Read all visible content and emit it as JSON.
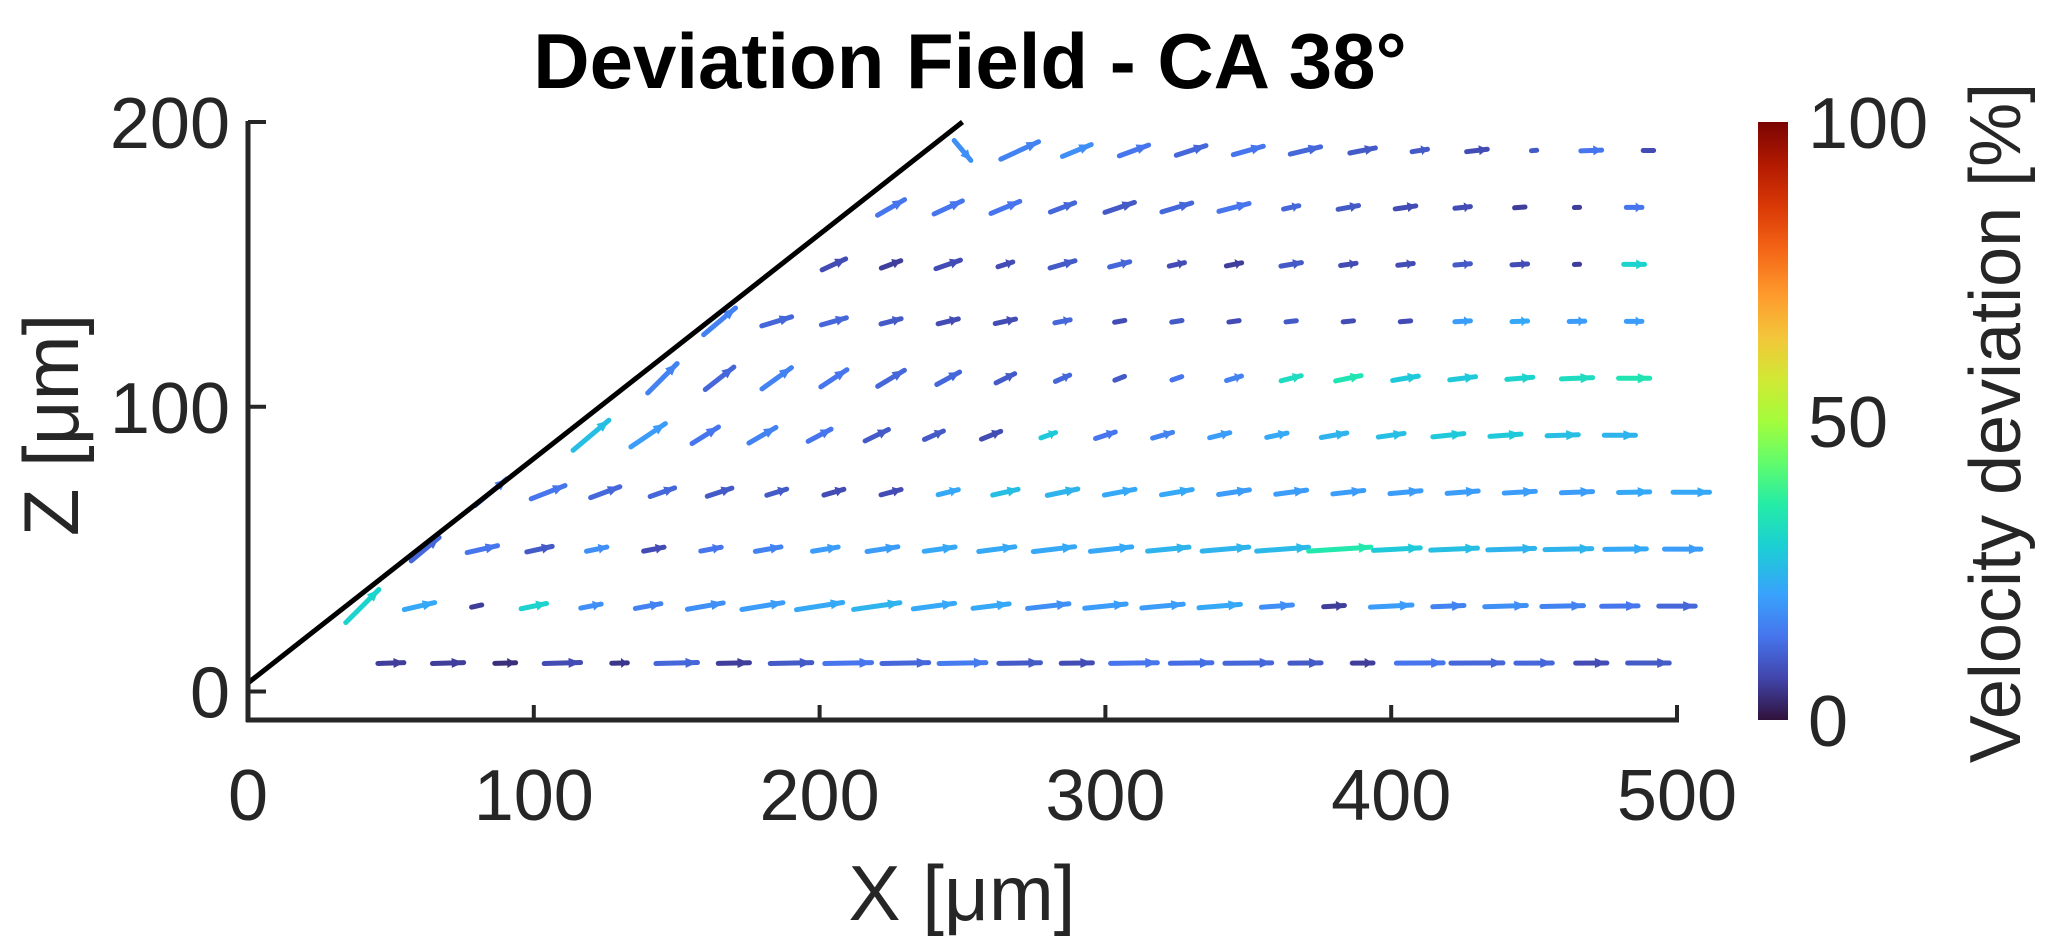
{
  "chart_data": {
    "type": "quiver",
    "title": "Deviation Field - CA 38°",
    "xlabel": "X [μm]",
    "ylabel": "Z [μm]",
    "xlim": [
      0,
      500
    ],
    "ylim": [
      -10,
      200
    ],
    "xticks": [
      "0",
      "100",
      "200",
      "300",
      "400",
      "500"
    ],
    "yticks": [
      "0",
      "100",
      "200"
    ],
    "boundary_line": {
      "x": [
        0,
        250
      ],
      "y": [
        3,
        200
      ]
    },
    "colorbar": {
      "label": "Velocity deviation [%]",
      "range": [
        0,
        100
      ],
      "ticks": [
        "0",
        "50",
        "100"
      ],
      "colormap": "turbo"
    },
    "rows": [
      {
        "z": 10,
        "x_start": 50,
        "count": 23,
        "deviations": [
          6,
          6,
          4,
          8,
          5,
          12,
          6,
          10,
          14,
          12,
          15,
          10,
          8,
          14,
          13,
          12,
          10,
          6,
          14,
          12,
          12,
          8,
          10
        ],
        "angle_deg": 2,
        "magnitudes": [
          5,
          6,
          4,
          7,
          3,
          8,
          6,
          8,
          9,
          9,
          9,
          8,
          6,
          9,
          8,
          9,
          6,
          4,
          9,
          10,
          7,
          6,
          8
        ]
      },
      {
        "z": 30,
        "x_start": 40,
        "count": 24,
        "deviations": [
          30,
          22,
          6,
          30,
          18,
          16,
          18,
          20,
          22,
          24,
          22,
          22,
          18,
          20,
          20,
          22,
          18,
          6,
          20,
          16,
          18,
          16,
          14,
          12
        ],
        "angle_deg": 15,
        "magnitudes": [
          9,
          6,
          2,
          5,
          4,
          5,
          7,
          8,
          9,
          9,
          8,
          7,
          8,
          8,
          8,
          8,
          6,
          4,
          8,
          6,
          8,
          8,
          7,
          7
        ],
        "first_angle_deg": 45
      },
      {
        "z": 50,
        "x_start": 62,
        "count": 23,
        "deviations": [
          12,
          14,
          10,
          18,
          8,
          14,
          16,
          20,
          20,
          22,
          22,
          22,
          22,
          24,
          24,
          25,
          35,
          28,
          26,
          24,
          24,
          22,
          20
        ],
        "angle_deg": 15,
        "magnitudes": [
          7,
          6,
          5,
          4,
          4,
          4,
          5,
          5,
          6,
          6,
          7,
          8,
          8,
          8,
          9,
          10,
          12,
          9,
          9,
          9,
          9,
          8,
          7
        ],
        "first_angle_deg": 40
      },
      {
        "z": 70,
        "x_start": 85,
        "count": 22,
        "deviations": [
          14,
          14,
          12,
          12,
          10,
          10,
          8,
          8,
          22,
          26,
          24,
          22,
          22,
          20,
          20,
          20,
          20,
          20,
          20,
          20,
          22,
          22
        ],
        "angle_deg": 25,
        "magnitudes": [
          8,
          7,
          6,
          5,
          5,
          4,
          4,
          4,
          4,
          5,
          6,
          6,
          6,
          6,
          6,
          6,
          6,
          6,
          6,
          6,
          6,
          7
        ],
        "first_angle_deg": 40
      },
      {
        "z": 90,
        "x_start": 120,
        "count": 19,
        "deviations": [
          26,
          20,
          14,
          16,
          14,
          10,
          10,
          8,
          28,
          14,
          16,
          20,
          22,
          24,
          26,
          28,
          28,
          26,
          24
        ],
        "angle_deg": 40,
        "magnitudes": [
          9,
          8,
          6,
          6,
          5,
          5,
          4,
          4,
          3,
          4,
          4,
          4,
          4,
          5,
          5,
          6,
          6,
          6,
          6
        ],
        "first_angle_deg": 40
      },
      {
        "z": 110,
        "x_start": 145,
        "count": 18,
        "deviations": [
          16,
          12,
          16,
          14,
          12,
          12,
          10,
          12,
          10,
          14,
          16,
          32,
          34,
          28,
          28,
          30,
          32,
          34
        ],
        "angle_deg": 45,
        "magnitudes": [
          8,
          7,
          7,
          6,
          6,
          5,
          4,
          3,
          2,
          2,
          3,
          4,
          5,
          5,
          5,
          5,
          6,
          6
        ],
        "first_angle_deg": 45
      },
      {
        "z": 130,
        "x_start": 165,
        "count": 17,
        "deviations": [
          16,
          12,
          12,
          10,
          8,
          8,
          12,
          8,
          10,
          8,
          10,
          8,
          8,
          20,
          22,
          20,
          20
        ],
        "angle_deg": 20,
        "magnitudes": [
          8,
          6,
          5,
          4,
          4,
          4,
          3,
          2,
          2,
          2,
          2,
          2,
          2,
          3,
          3,
          3,
          3
        ],
        "first_angle_deg": 40
      },
      {
        "z": 150,
        "x_start": 205,
        "count": 15,
        "deviations": [
          8,
          6,
          8,
          8,
          10,
          12,
          8,
          6,
          10,
          8,
          8,
          10,
          8,
          6,
          30
        ],
        "angle_deg": 25,
        "magnitudes": [
          5,
          4,
          5,
          3,
          5,
          4,
          3,
          3,
          4,
          3,
          3,
          3,
          3,
          1,
          4
        ],
        "first_angle_deg": 25
      },
      {
        "z": 170,
        "x_start": 225,
        "count": 14,
        "deviations": [
          14,
          14,
          14,
          12,
          10,
          12,
          14,
          12,
          10,
          8,
          8,
          6,
          6,
          14
        ],
        "angle_deg": 30,
        "magnitudes": [
          6,
          6,
          6,
          5,
          6,
          6,
          6,
          3,
          4,
          4,
          3,
          2,
          1,
          3
        ],
        "first_angle_deg": 30
      },
      {
        "z": 190,
        "x_start": 250,
        "count": 13,
        "deviations": [
          18,
          16,
          18,
          14,
          12,
          14,
          12,
          10,
          10,
          8,
          10,
          14,
          8
        ],
        "angle_deg": 30,
        "magnitudes": [
          5,
          8,
          6,
          6,
          6,
          6,
          6,
          5,
          3,
          4,
          1,
          4,
          2
        ],
        "first_angle_deg": -50
      }
    ]
  }
}
